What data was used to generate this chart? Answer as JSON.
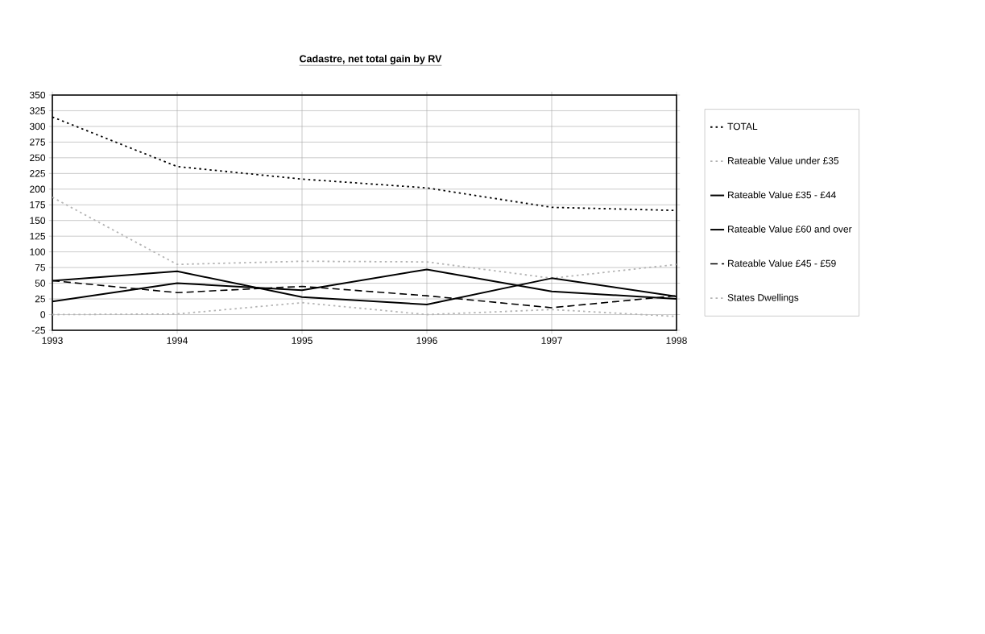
{
  "chart_data": {
    "type": "line",
    "title": "Cadastre, net total gain by RV",
    "x": [
      1993,
      1994,
      1995,
      1996,
      1997,
      1998
    ],
    "series": [
      {
        "name": "TOTAL",
        "color": "#000000",
        "line_style": "dotted",
        "values": [
          315,
          236,
          216,
          202,
          171,
          166
        ]
      },
      {
        "name": "Rateable Value under £35",
        "color": "#b4b4b4",
        "line_style": "dotted",
        "values": [
          187,
          80,
          85,
          84,
          58,
          80
        ]
      },
      {
        "name": "Rateable Value £35 - £44",
        "color": "#000000",
        "line_style": "solid",
        "values": [
          54,
          69,
          28,
          16,
          58,
          29
        ]
      },
      {
        "name": "Rateable Value £60 and over",
        "color": "#000000",
        "line_style": "solid",
        "values": [
          21,
          50,
          39,
          72,
          37,
          25
        ]
      },
      {
        "name": "Rateable Value £45 - £59",
        "color": "#000000",
        "line_style": "dashed",
        "values": [
          54,
          35,
          45,
          30,
          11,
          30
        ]
      },
      {
        "name": "States Dwellings",
        "color": "#b4b4b4",
        "line_style": "dotted",
        "values": [
          0,
          1,
          19,
          0,
          8,
          -3
        ]
      }
    ],
    "xlim": [
      1993,
      1998
    ],
    "xticks": [
      1993,
      1994,
      1995,
      1996,
      1997,
      1998
    ],
    "ylim": [
      -25,
      350
    ],
    "yticks": [
      -25,
      0,
      25,
      50,
      75,
      100,
      125,
      150,
      175,
      200,
      225,
      250,
      275,
      300,
      325,
      350
    ],
    "grid": true,
    "legend": "right",
    "marker": "none"
  }
}
